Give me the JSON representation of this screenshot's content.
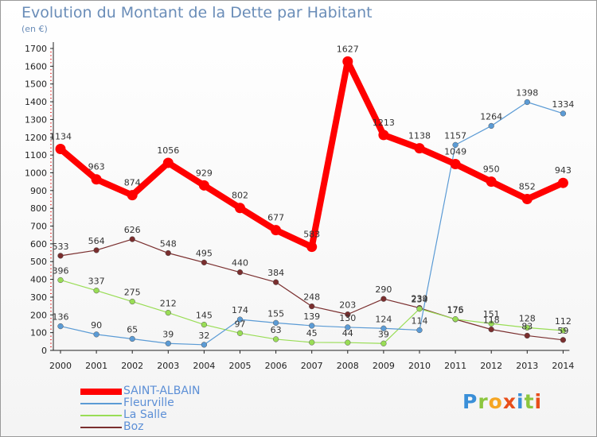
{
  "title": "Evolution du Montant de la Dette par Habitant",
  "unit": "(en €)",
  "logo": {
    "text": "Proxiti",
    "letters": [
      {
        "ch": "P",
        "color": "#3a8fd8"
      },
      {
        "ch": "r",
        "color": "#8cc63f"
      },
      {
        "ch": "o",
        "color": "#f5a623"
      },
      {
        "ch": "x",
        "color": "#e84e1b"
      },
      {
        "ch": "i",
        "color": "#3a8fd8"
      },
      {
        "ch": "t",
        "color": "#8cc63f"
      },
      {
        "ch": "i",
        "color": "#e84e1b"
      }
    ]
  },
  "chart_data": {
    "type": "line",
    "title": "Evolution du Montant de la Dette par Habitant",
    "subtitle": "(en €)",
    "x": [
      "2000",
      "2001",
      "2002",
      "2003",
      "2004",
      "2005",
      "2006",
      "2007",
      "2008",
      "2009",
      "2010",
      "2011",
      "2012",
      "2013",
      "2014"
    ],
    "yticks": [
      0,
      100,
      200,
      300,
      400,
      500,
      600,
      700,
      800,
      900,
      1000,
      1100,
      1200,
      1300,
      1400,
      1500,
      1600,
      1700
    ],
    "ylim": [
      0,
      1700
    ],
    "grid": false,
    "legend_position": "bottom-left",
    "series": [
      {
        "name": "SAINT-ALBAIN",
        "color": "#ff0000",
        "values": [
          1134,
          963,
          874,
          1056,
          929,
          802,
          677,
          583,
          1627,
          1213,
          1138,
          1049,
          950,
          852,
          943
        ],
        "labels": [
          "1134",
          "963",
          "874",
          "1056",
          "929",
          "802",
          "677",
          "583",
          "1627",
          "1213",
          "1138",
          "1049",
          "950",
          "852",
          "943"
        ]
      },
      {
        "name": "Fleurville",
        "color": "#5b9bd5",
        "values": [
          136,
          90,
          65,
          39,
          32,
          174,
          155,
          139,
          130,
          124,
          114,
          1157,
          1264,
          1398,
          1334
        ],
        "labels": [
          "136",
          "90",
          "65",
          "39",
          "32",
          "174",
          "155",
          "139",
          "130",
          "124",
          "114",
          "1157",
          "1264",
          "1398",
          "1334"
        ]
      },
      {
        "name": "La Salle",
        "color": "#99dd55",
        "values": [
          396,
          337,
          275,
          212,
          145,
          97,
          63,
          45,
          44,
          39,
          234,
          176,
          151,
          128,
          112
        ],
        "labels": [
          "396",
          "337",
          "275",
          "212",
          "145",
          "97",
          "63",
          "45",
          "44",
          "39",
          "234",
          "176",
          "151",
          "128",
          "112"
        ]
      },
      {
        "name": "Boz",
        "color": "#7a2e2e",
        "values": [
          533,
          564,
          626,
          548,
          495,
          440,
          384,
          248,
          203,
          290,
          239,
          175,
          118,
          83,
          59
        ],
        "labels": [
          "533",
          "564",
          "626",
          "548",
          "495",
          "440",
          "384",
          "248",
          "203",
          "290",
          "239",
          "175",
          "118",
          "83",
          "59"
        ]
      }
    ]
  }
}
